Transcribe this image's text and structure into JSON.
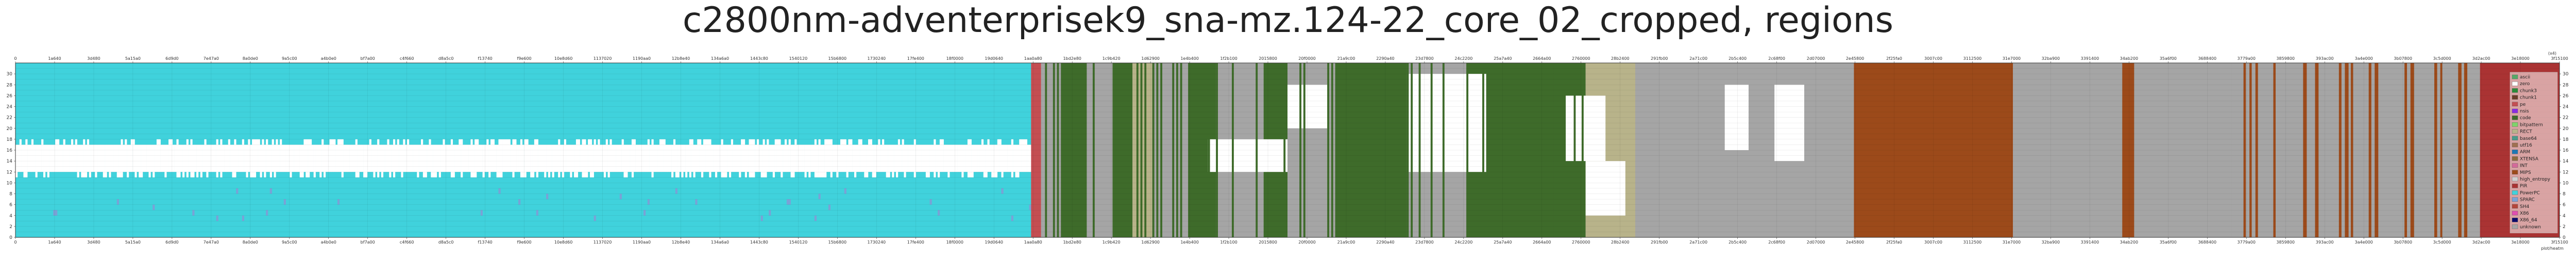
{
  "chart_data": {
    "type": "heatmap",
    "title": "c2800nm-adventerprisek9_sna-mz.124-22_core_02_cropped, regions",
    "xlabel": "",
    "ylabel": "",
    "x_top_unit": "(x4)",
    "x_bottom_unit": "plot/heatm",
    "xlim": [
      0,
      1280
    ],
    "ylim": [
      0,
      32
    ],
    "grid": true,
    "x_tick_labels": [
      "0",
      "1a640",
      "3d480",
      "5a15a0",
      "6d9d0",
      "7e47a0",
      "8a0de0",
      "9a5c00",
      "a4b0e0",
      "bf7a00",
      "c4f660",
      "d8a5c0",
      "f13740",
      "f9e600",
      "10e8d60",
      "1137020",
      "1190aa0",
      "12b8e40",
      "134a6a0",
      "1443c80",
      "1540120",
      "15b6800",
      "1730240",
      "17fe400",
      "18f0000",
      "19d0640",
      "1aa0a80",
      "1bd2e80",
      "1c9b420",
      "1d62900",
      "1e4b400",
      "1f2b100",
      "2015800",
      "20f0000",
      "21a9c00",
      "2290a40",
      "23d7800",
      "24c2200",
      "25a7a40",
      "2664a00",
      "2760000",
      "28b2400",
      "291fb00",
      "2a71c00",
      "2b5c400",
      "2c68f00",
      "2d07000",
      "2e45800",
      "2f25fa0",
      "3007c00",
      "3112500",
      "31e7000",
      "32ba900",
      "3391400",
      "34ab200",
      "35a6f00",
      "3688400",
      "3779a00",
      "3859800",
      "393ac00",
      "3a4e000",
      "3b07800",
      "3c5d000",
      "3d2ac00",
      "3e18000",
      "3f15100"
    ],
    "y_ticks": [
      0,
      2,
      4,
      6,
      8,
      10,
      12,
      14,
      16,
      18,
      20,
      22,
      24,
      26,
      28,
      30
    ],
    "legend": [
      {
        "name": "ascii",
        "color": "#55a868"
      },
      {
        "name": "zero",
        "color": "#ffffff"
      },
      {
        "name": "chunk3",
        "color": "#2a8a3a"
      },
      {
        "name": "chunk1",
        "color": "#6a3d2a"
      },
      {
        "name": "pe",
        "color": "#c44e52"
      },
      {
        "name": "nsis",
        "color": "#8a2be2"
      },
      {
        "name": "code",
        "color": "#3e6b2a"
      },
      {
        "name": "bitpattern",
        "color": "#7fd36a"
      },
      {
        "name": "RECT",
        "color": "#b8b38a"
      },
      {
        "name": "base64",
        "color": "#4a9a8a"
      },
      {
        "name": "utf16",
        "color": "#a07050"
      },
      {
        "name": "ARM",
        "color": "#1f77b4"
      },
      {
        "name": "XTENSA",
        "color": "#8e6b3e"
      },
      {
        "name": "INT",
        "color": "#d46a9a"
      },
      {
        "name": "MIPS",
        "color": "#9c4a1a"
      },
      {
        "name": "high_entropy",
        "color": "#d0d0d0"
      },
      {
        "name": "PIR",
        "color": "#aa3333"
      },
      {
        "name": "PowerPC",
        "color": "#40d2dc"
      },
      {
        "name": "SPARC",
        "color": "#7aa2d6"
      },
      {
        "name": "SH4",
        "color": "#b4453a"
      },
      {
        "name": "X86",
        "color": "#e04fb0"
      },
      {
        "name": "X86_64",
        "color": "#0a0a6a"
      },
      {
        "name": "unknown",
        "color": "#a5a5a5"
      }
    ],
    "regions": [
      {
        "start": 0,
        "end": 511,
        "class": "PowerPC",
        "note": "band rows 12-16 zero"
      },
      {
        "start": 511,
        "end": 516,
        "class": "pe"
      },
      {
        "start": 516,
        "end": 526,
        "class": "unknown"
      },
      {
        "start": 526,
        "end": 538,
        "class": "code"
      },
      {
        "start": 538,
        "end": 552,
        "class": "unknown"
      },
      {
        "start": 552,
        "end": 562,
        "class": "code"
      },
      {
        "start": 562,
        "end": 572,
        "class": "RECT"
      },
      {
        "start": 572,
        "end": 590,
        "class": "unknown"
      },
      {
        "start": 590,
        "end": 604,
        "class": "code"
      },
      {
        "start": 604,
        "end": 628,
        "class": "unknown"
      },
      {
        "start": 628,
        "end": 640,
        "class": "code"
      },
      {
        "start": 640,
        "end": 664,
        "class": "unknown"
      },
      {
        "start": 664,
        "end": 700,
        "class": "code"
      },
      {
        "start": 700,
        "end": 730,
        "class": "unknown"
      },
      {
        "start": 730,
        "end": 790,
        "class": "code"
      },
      {
        "start": 790,
        "end": 815,
        "class": "RECT"
      },
      {
        "start": 815,
        "end": 860,
        "class": "unknown"
      },
      {
        "start": 860,
        "end": 880,
        "class": "unknown"
      },
      {
        "start": 880,
        "end": 925,
        "class": "unknown"
      },
      {
        "start": 925,
        "end": 1005,
        "class": "MIPS"
      },
      {
        "start": 1005,
        "end": 1060,
        "class": "unknown"
      },
      {
        "start": 1060,
        "end": 1066,
        "class": "MIPS"
      },
      {
        "start": 1066,
        "end": 1115,
        "class": "unknown"
      },
      {
        "start": 1115,
        "end": 1240,
        "class": "unknown",
        "note": "interleaved MIPS stripes"
      },
      {
        "start": 1240,
        "end": 1280,
        "class": "PIR"
      }
    ]
  }
}
